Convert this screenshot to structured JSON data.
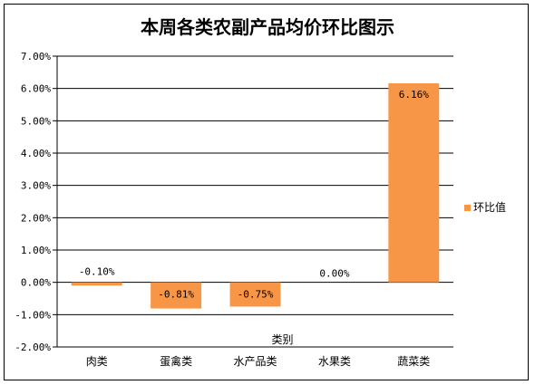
{
  "chart_data": {
    "type": "bar",
    "title": "本周各类农副产品均价环比图示",
    "xlabel": "类别",
    "ylabel": "",
    "categories": [
      "肉类",
      "蛋禽类",
      "水产品类",
      "水果类",
      "蔬菜类"
    ],
    "series": [
      {
        "name": "环比值",
        "values": [
          -0.1,
          -0.81,
          -0.75,
          0.0,
          6.16
        ],
        "data_labels": [
          "-0.10%",
          "-0.81%",
          "-0.75%",
          "0.00%",
          "6.16%"
        ]
      }
    ],
    "ylim": [
      -2.0,
      7.0
    ],
    "yticks": [
      7.0,
      6.0,
      5.0,
      4.0,
      3.0,
      2.0,
      1.0,
      0.0,
      -1.0,
      -2.0
    ],
    "ytick_labels": [
      "7.00%",
      "6.00%",
      "5.00%",
      "4.00%",
      "3.00%",
      "2.00%",
      "1.00%",
      "0.00%",
      "-1.00%",
      "-2.00%"
    ],
    "grid": true,
    "legend_position": "right",
    "bar_color": "#F79646"
  }
}
